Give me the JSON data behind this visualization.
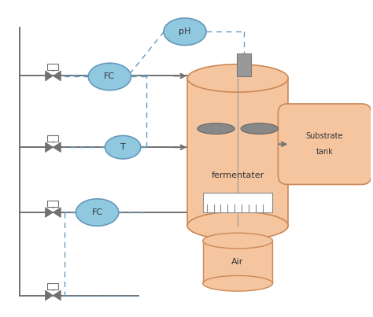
{
  "bg_color": "#ffffff",
  "tank_color": "#f5c5a0",
  "tank_edge_color": "#cc8855",
  "circle_fill": "#90c8e0",
  "circle_edge": "#6699bb",
  "gray": "#808080",
  "pipe_color": "#707070",
  "dash_color": "#6699bb",
  "fermentater_label": "fermentater",
  "air_label": "Air",
  "substrate_label1": "Substrate",
  "substrate_label2": "tank",
  "pH_label": "pH",
  "FC_label": "FC",
  "T_label": "T"
}
